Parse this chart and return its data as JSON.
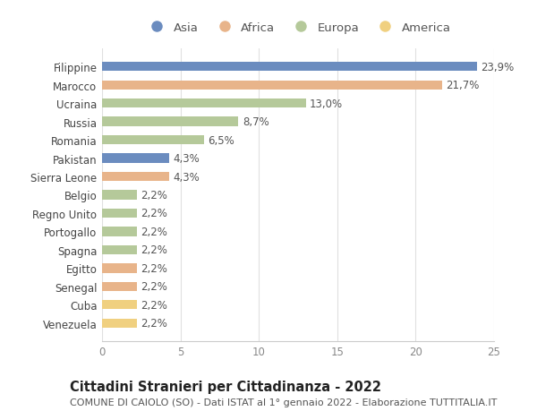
{
  "countries": [
    "Venezuela",
    "Cuba",
    "Senegal",
    "Egitto",
    "Spagna",
    "Portogallo",
    "Regno Unito",
    "Belgio",
    "Sierra Leone",
    "Pakistan",
    "Romania",
    "Russia",
    "Ucraina",
    "Marocco",
    "Filippine"
  ],
  "values": [
    2.2,
    2.2,
    2.2,
    2.2,
    2.2,
    2.2,
    2.2,
    2.2,
    4.3,
    4.3,
    6.5,
    8.7,
    13.0,
    21.7,
    23.9
  ],
  "labels": [
    "2,2%",
    "2,2%",
    "2,2%",
    "2,2%",
    "2,2%",
    "2,2%",
    "2,2%",
    "2,2%",
    "4,3%",
    "4,3%",
    "6,5%",
    "8,7%",
    "13,0%",
    "21,7%",
    "23,9%"
  ],
  "continents": [
    "America",
    "America",
    "Africa",
    "Africa",
    "Europa",
    "Europa",
    "Europa",
    "Europa",
    "Africa",
    "Asia",
    "Europa",
    "Europa",
    "Europa",
    "Africa",
    "Asia"
  ],
  "colors": {
    "Asia": "#6b8cbf",
    "Africa": "#e8b48a",
    "Europa": "#b5c99a",
    "America": "#f0d080"
  },
  "legend_order": [
    "Asia",
    "Africa",
    "Europa",
    "America"
  ],
  "legend_colors": {
    "Asia": "#6b8cbf",
    "Africa": "#e8b48a",
    "Europa": "#b5c99a",
    "America": "#f0d080"
  },
  "title": "Cittadini Stranieri per Cittadinanza - 2022",
  "subtitle": "COMUNE DI CAIOLO (SO) - Dati ISTAT al 1° gennaio 2022 - Elaborazione TUTTITALIA.IT",
  "xlim": [
    0,
    25
  ],
  "xticks": [
    0,
    5,
    10,
    15,
    20,
    25
  ],
  "background_color": "#ffffff",
  "grid_color": "#e0e0e0",
  "bar_height": 0.5,
  "title_fontsize": 10.5,
  "subtitle_fontsize": 8,
  "label_fontsize": 8.5,
  "tick_fontsize": 8.5,
  "legend_fontsize": 9.5
}
